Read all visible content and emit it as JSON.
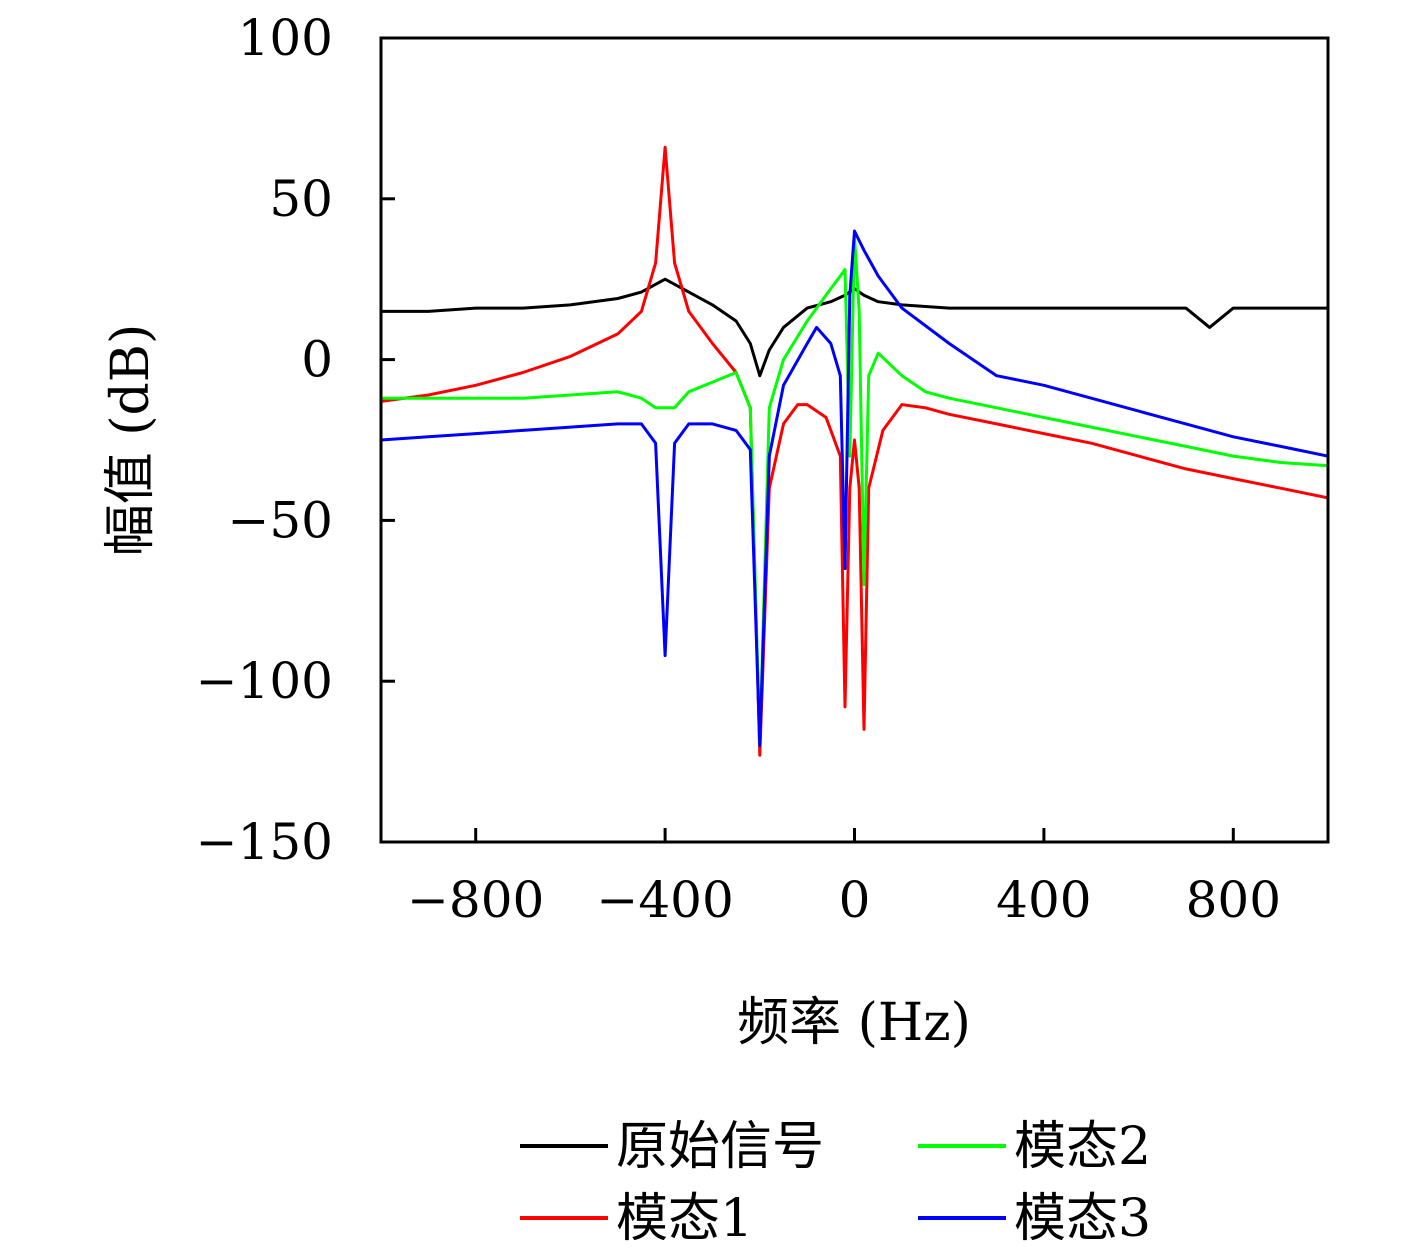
{
  "chart_data": {
    "type": "line",
    "title": "",
    "xlabel": "频率 (Hz)",
    "ylabel": "幅值 (dB)",
    "xlim": [
      -1000,
      1000
    ],
    "ylim": [
      -150,
      100
    ],
    "x_ticks": [
      -800,
      -400,
      0,
      400,
      800
    ],
    "y_ticks": [
      100,
      50,
      0,
      -50,
      -100,
      -150
    ],
    "x_tick_labels": [
      "−800",
      "−400",
      "0",
      "400",
      "800"
    ],
    "y_tick_labels": [
      "100",
      "50",
      "0",
      "−50",
      "−100",
      "−150"
    ],
    "grid": false,
    "legend_position": "bottom",
    "series": [
      {
        "name": "原始信号",
        "color": "#000000",
        "x": [
          -1000,
          -900,
          -800,
          -700,
          -600,
          -500,
          -450,
          -400,
          -350,
          -300,
          -250,
          -220,
          -200,
          -180,
          -150,
          -100,
          -50,
          -20,
          0,
          20,
          50,
          100,
          200,
          300,
          400,
          500,
          600,
          700,
          750,
          800,
          900,
          1000
        ],
        "y": [
          15,
          15,
          16,
          16,
          17,
          19,
          21,
          25,
          21,
          17,
          12,
          5,
          -5,
          3,
          10,
          16,
          18,
          20,
          22,
          20,
          18,
          17,
          16,
          16,
          16,
          16,
          16,
          16,
          10,
          16,
          16,
          16
        ]
      },
      {
        "name": "模态1",
        "color": "#ff0000",
        "x": [
          -1000,
          -900,
          -800,
          -700,
          -600,
          -500,
          -450,
          -420,
          -400,
          -380,
          -350,
          -300,
          -250,
          -220,
          -200,
          -180,
          -150,
          -120,
          -100,
          -60,
          -30,
          -20,
          -10,
          0,
          10,
          20,
          30,
          60,
          100,
          150,
          200,
          300,
          400,
          500,
          600,
          700,
          800,
          900,
          1000
        ],
        "y": [
          -13,
          -11,
          -8,
          -4,
          1,
          8,
          15,
          30,
          66,
          30,
          15,
          5,
          -4,
          -15,
          -123,
          -40,
          -20,
          -14,
          -14,
          -18,
          -30,
          -108,
          -40,
          -25,
          -40,
          -115,
          -40,
          -22,
          -14,
          -15,
          -17,
          -20,
          -23,
          -26,
          -30,
          -34,
          -37,
          -40,
          -43
        ]
      },
      {
        "name": "模态2",
        "color": "#00ff00",
        "x": [
          -1000,
          -900,
          -800,
          -700,
          -600,
          -500,
          -450,
          -420,
          -400,
          -380,
          -350,
          -300,
          -250,
          -220,
          -200,
          -180,
          -150,
          -100,
          -50,
          -20,
          -10,
          0,
          10,
          20,
          30,
          50,
          100,
          150,
          200,
          300,
          400,
          500,
          600,
          700,
          800,
          900,
          1000
        ],
        "y": [
          -12,
          -12,
          -12,
          -12,
          -11,
          -10,
          -12,
          -15,
          -15,
          -15,
          -10,
          -7,
          -4,
          -15,
          -120,
          -15,
          0,
          12,
          22,
          28,
          -30,
          38,
          15,
          -70,
          -5,
          2,
          -5,
          -10,
          -12,
          -15,
          -18,
          -21,
          -24,
          -27,
          -30,
          -32,
          -33
        ]
      },
      {
        "name": "模态3",
        "color": "#0000ff",
        "x": [
          -1000,
          -900,
          -800,
          -700,
          -600,
          -500,
          -450,
          -420,
          -400,
          -380,
          -350,
          -300,
          -250,
          -220,
          -200,
          -180,
          -150,
          -100,
          -80,
          -50,
          -30,
          -20,
          -10,
          0,
          10,
          20,
          50,
          100,
          200,
          300,
          400,
          500,
          600,
          700,
          800,
          900,
          1000
        ],
        "y": [
          -25,
          -24,
          -23,
          -22,
          -21,
          -20,
          -20,
          -26,
          -92,
          -26,
          -20,
          -20,
          -22,
          -28,
          -120,
          -30,
          -8,
          5,
          10,
          5,
          -5,
          -65,
          20,
          40,
          37,
          34,
          26,
          16,
          5,
          -5,
          -8,
          -12,
          -16,
          -20,
          -24,
          -27,
          -30
        ]
      }
    ]
  }
}
